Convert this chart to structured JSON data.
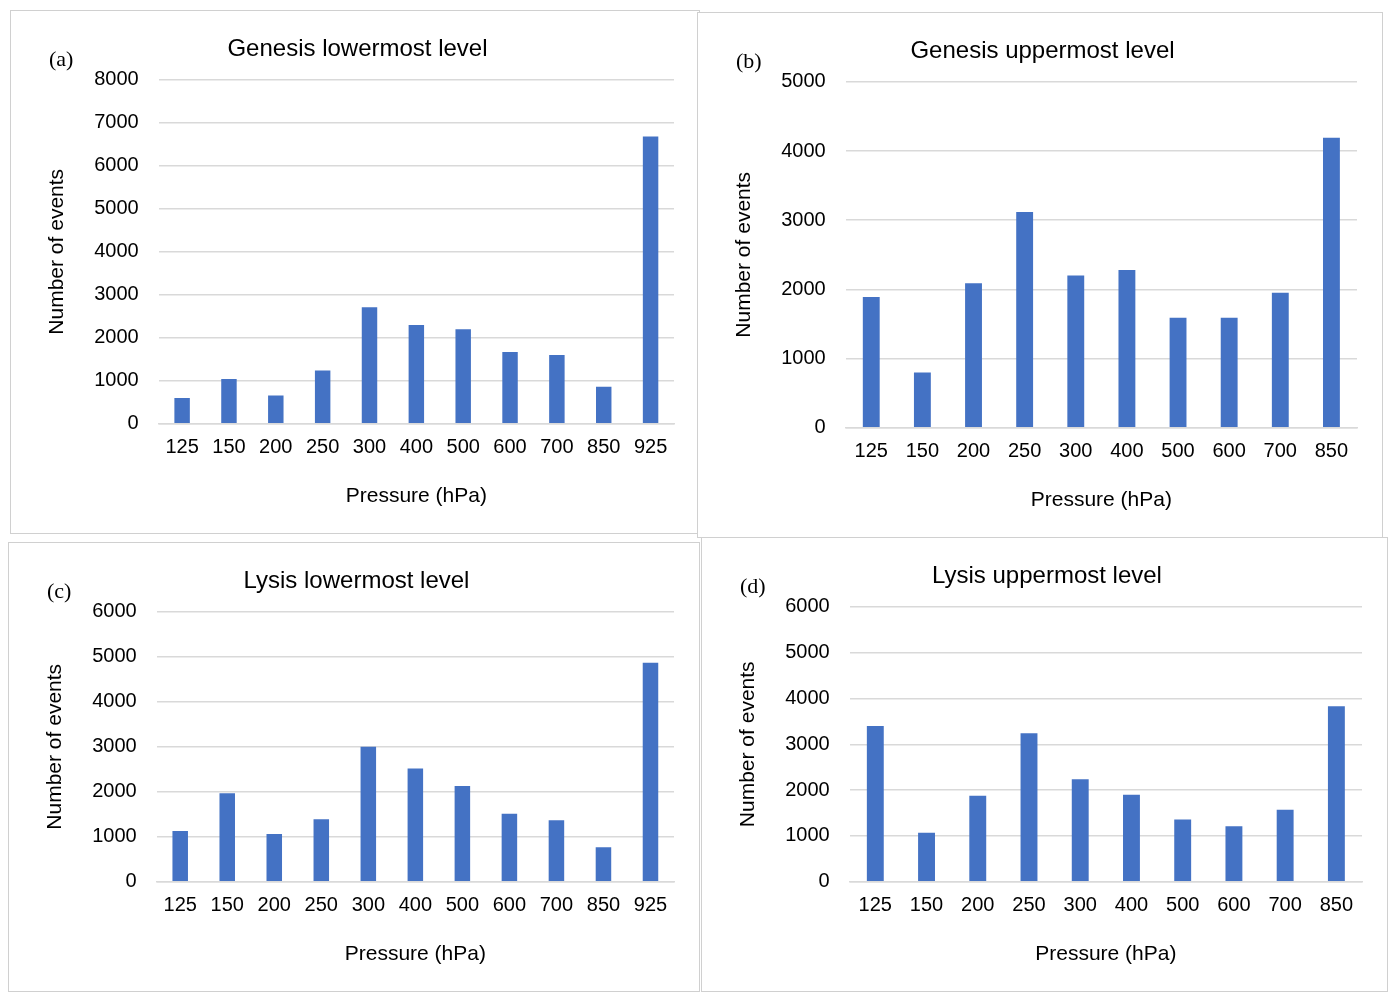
{
  "chart_data": [
    {
      "type": "bar",
      "title": "Genesis lowermost level",
      "xlabel": "Pressure (hPa)",
      "ylabel": "Number of events",
      "annotations": [
        "(a)"
      ],
      "categories": [
        "125",
        "150",
        "200",
        "250",
        "300",
        "400",
        "500",
        "600",
        "700",
        "850",
        "925"
      ],
      "values": [
        600,
        1040,
        660,
        1240,
        2710,
        2300,
        2200,
        1670,
        1600,
        860,
        6680
      ],
      "color": "#4472c4",
      "ylim": [
        0,
        8000
      ],
      "yticks": [
        0,
        1000,
        2000,
        3000,
        4000,
        5000,
        6000,
        7000,
        8000
      ],
      "grid": "y",
      "legend": false
    },
    {
      "type": "bar",
      "title": "Genesis uppermost level",
      "xlabel": "Pressure (hPa)",
      "ylabel": "Number of events",
      "annotations": [
        "(b)"
      ],
      "categories": [
        "125",
        "150",
        "200",
        "250",
        "300",
        "400",
        "500",
        "600",
        "700",
        "850"
      ],
      "values": [
        1890,
        800,
        2090,
        3120,
        2200,
        2280,
        1590,
        1590,
        1950,
        4190
      ],
      "color": "#4472c4",
      "ylim": [
        0,
        5000
      ],
      "yticks": [
        0,
        1000,
        2000,
        3000,
        4000,
        5000
      ],
      "grid": "y",
      "legend": false
    },
    {
      "type": "bar",
      "title": "Lysis lowermost level",
      "xlabel": "Pressure (hPa)",
      "ylabel": "Number of events",
      "annotations": [
        "(c)"
      ],
      "categories": [
        "125",
        "150",
        "200",
        "250",
        "300",
        "400",
        "500",
        "600",
        "700",
        "850",
        "925"
      ],
      "values": [
        1130,
        1970,
        1060,
        1390,
        3000,
        2520,
        2130,
        1510,
        1370,
        770,
        4870
      ],
      "color": "#4472c4",
      "ylim": [
        0,
        6000
      ],
      "yticks": [
        0,
        1000,
        2000,
        3000,
        4000,
        5000,
        6000
      ],
      "grid": "y",
      "legend": false
    },
    {
      "type": "bar",
      "title": "Lysis uppermost level",
      "xlabel": "Pressure (hPa)",
      "ylabel": "Number of events",
      "annotations": [
        "(d)"
      ],
      "categories": [
        "125",
        "150",
        "200",
        "250",
        "300",
        "400",
        "500",
        "600",
        "700",
        "850"
      ],
      "values": [
        3400,
        1070,
        1880,
        3240,
        2240,
        1900,
        1360,
        1210,
        1570,
        3830
      ],
      "color": "#4472c4",
      "ylim": [
        0,
        6000
      ],
      "yticks": [
        0,
        1000,
        2000,
        3000,
        4000,
        5000,
        6000
      ],
      "grid": "y",
      "legend": false
    }
  ]
}
